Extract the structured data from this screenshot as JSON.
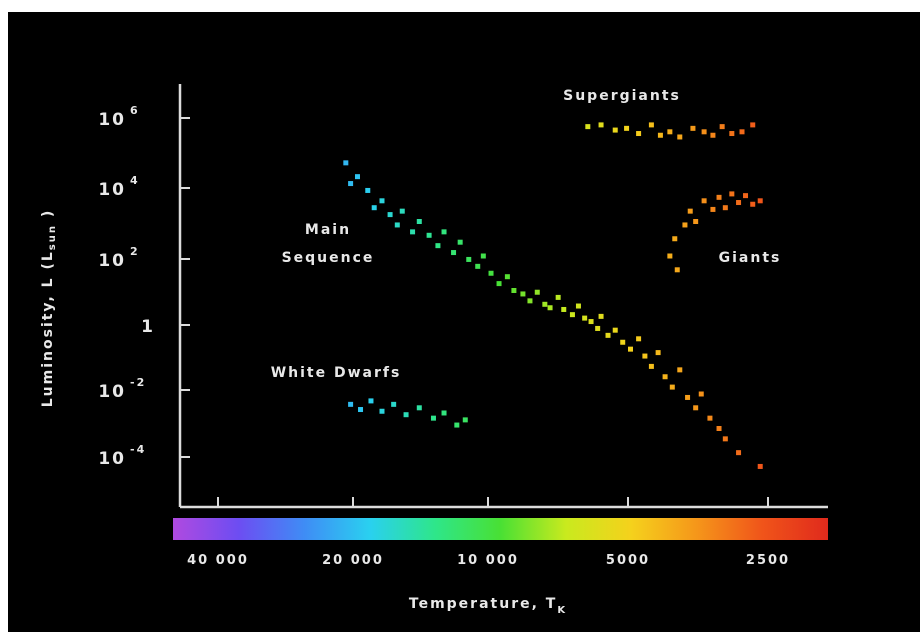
{
  "chart_data": {
    "type": "scatter",
    "title": "",
    "xlabel": "Temperature, T",
    "xlabel_subscript": "K",
    "ylabel": "Luminosity, L (L",
    "ylabel_subscript": "sun",
    "ylabel_end": ")",
    "x_axis_scale": "reversed-log",
    "y_axis_scale": "log",
    "x_ticks": [
      {
        "value": 40000,
        "label": "40 000"
      },
      {
        "value": 20000,
        "label": "20 000"
      },
      {
        "value": 10000,
        "label": "10 000"
      },
      {
        "value": 5000,
        "label": "5000"
      },
      {
        "value": 2500,
        "label": "2500"
      }
    ],
    "y_ticks": [
      {
        "exp": 6,
        "base": "10",
        "sup": "6"
      },
      {
        "exp": 4,
        "base": "10",
        "sup": "4"
      },
      {
        "exp": 2,
        "base": "10",
        "sup": "2"
      },
      {
        "exp": 0,
        "base": "1",
        "sup": ""
      },
      {
        "exp": -2,
        "base": "10",
        "sup": "-2"
      },
      {
        "exp": -4,
        "base": "10",
        "sup": "-4"
      }
    ],
    "annotations": [
      {
        "id": "supergiants",
        "lines": [
          "Supergiants"
        ]
      },
      {
        "id": "giants",
        "lines": [
          "Giants"
        ]
      },
      {
        "id": "main-sequence",
        "lines": [
          "Main",
          "Sequence"
        ]
      },
      {
        "id": "white-dwarfs",
        "lines": [
          "White Dwarfs"
        ]
      }
    ],
    "series": [
      {
        "name": "Main Sequence",
        "points": [
          [
            21000,
            4.7
          ],
          [
            20500,
            4.1
          ],
          [
            19800,
            4.3
          ],
          [
            18800,
            3.9
          ],
          [
            18200,
            3.4
          ],
          [
            17500,
            3.6
          ],
          [
            16800,
            3.2
          ],
          [
            16200,
            2.9
          ],
          [
            15800,
            3.3
          ],
          [
            15000,
            2.7
          ],
          [
            14500,
            3.0
          ],
          [
            13800,
            2.6
          ],
          [
            13200,
            2.3
          ],
          [
            12800,
            2.7
          ],
          [
            12200,
            2.1
          ],
          [
            11800,
            2.4
          ],
          [
            11300,
            1.9
          ],
          [
            10800,
            1.7
          ],
          [
            10500,
            2.0
          ],
          [
            10100,
            1.5
          ],
          [
            9700,
            1.2
          ],
          [
            9300,
            1.4
          ],
          [
            9000,
            1.0
          ],
          [
            8600,
            0.9
          ],
          [
            8300,
            0.7
          ],
          [
            8000,
            0.95
          ],
          [
            7700,
            0.6
          ],
          [
            7500,
            0.5
          ],
          [
            7200,
            0.8
          ],
          [
            7000,
            0.45
          ],
          [
            6700,
            0.3
          ],
          [
            6500,
            0.55
          ],
          [
            6300,
            0.2
          ],
          [
            6100,
            0.1
          ],
          [
            5900,
            -0.1
          ],
          [
            5800,
            0.25
          ],
          [
            5600,
            -0.3
          ],
          [
            5400,
            -0.15
          ],
          [
            5200,
            -0.5
          ],
          [
            5000,
            -0.7
          ],
          [
            4800,
            -0.4
          ],
          [
            4650,
            -0.9
          ],
          [
            4500,
            -1.2
          ],
          [
            4350,
            -0.8
          ],
          [
            4200,
            -1.5
          ],
          [
            4050,
            -1.8
          ],
          [
            3900,
            -1.3
          ],
          [
            3750,
            -2.1
          ],
          [
            3600,
            -2.4
          ],
          [
            3500,
            -2.0
          ],
          [
            3350,
            -2.7
          ],
          [
            3200,
            -3.0
          ],
          [
            3100,
            -3.3
          ],
          [
            2900,
            -3.7
          ],
          [
            2600,
            -4.1
          ]
        ]
      },
      {
        "name": "Supergiants",
        "points": [
          [
            6200,
            5.75
          ],
          [
            5800,
            5.8
          ],
          [
            5400,
            5.65
          ],
          [
            5100,
            5.7
          ],
          [
            4800,
            5.55
          ],
          [
            4500,
            5.8
          ],
          [
            4300,
            5.5
          ],
          [
            4100,
            5.6
          ],
          [
            3900,
            5.45
          ],
          [
            3650,
            5.7
          ],
          [
            3450,
            5.6
          ],
          [
            3300,
            5.5
          ],
          [
            3150,
            5.75
          ],
          [
            3000,
            5.55
          ],
          [
            2850,
            5.6
          ],
          [
            2700,
            5.8
          ]
        ]
      },
      {
        "name": "Giants",
        "points": [
          [
            4100,
            2.0
          ],
          [
            4000,
            2.5
          ],
          [
            3950,
            1.6
          ],
          [
            3800,
            2.9
          ],
          [
            3700,
            3.3
          ],
          [
            3600,
            3.0
          ],
          [
            3450,
            3.6
          ],
          [
            3300,
            3.35
          ],
          [
            3200,
            3.7
          ],
          [
            3100,
            3.4
          ],
          [
            3000,
            3.8
          ],
          [
            2900,
            3.55
          ],
          [
            2800,
            3.75
          ],
          [
            2700,
            3.5
          ],
          [
            2600,
            3.6
          ]
        ]
      },
      {
        "name": "White Dwarfs",
        "points": [
          [
            20500,
            -2.3
          ],
          [
            19500,
            -2.45
          ],
          [
            18500,
            -2.2
          ],
          [
            17500,
            -2.5
          ],
          [
            16500,
            -2.3
          ],
          [
            15500,
            -2.6
          ],
          [
            14500,
            -2.4
          ],
          [
            13500,
            -2.7
          ],
          [
            12800,
            -2.55
          ],
          [
            12000,
            -2.9
          ],
          [
            11500,
            -2.75
          ]
        ]
      }
    ],
    "colorbar": [
      "#b04ae0",
      "#6d4df2",
      "#3f8cf5",
      "#2ad0f0",
      "#2ee68a",
      "#49e034",
      "#c9ea1e",
      "#f5d11c",
      "#f5961a",
      "#f0541a",
      "#e02a1c"
    ],
    "background": "#000000",
    "axis_color": "#dcdcdc"
  }
}
